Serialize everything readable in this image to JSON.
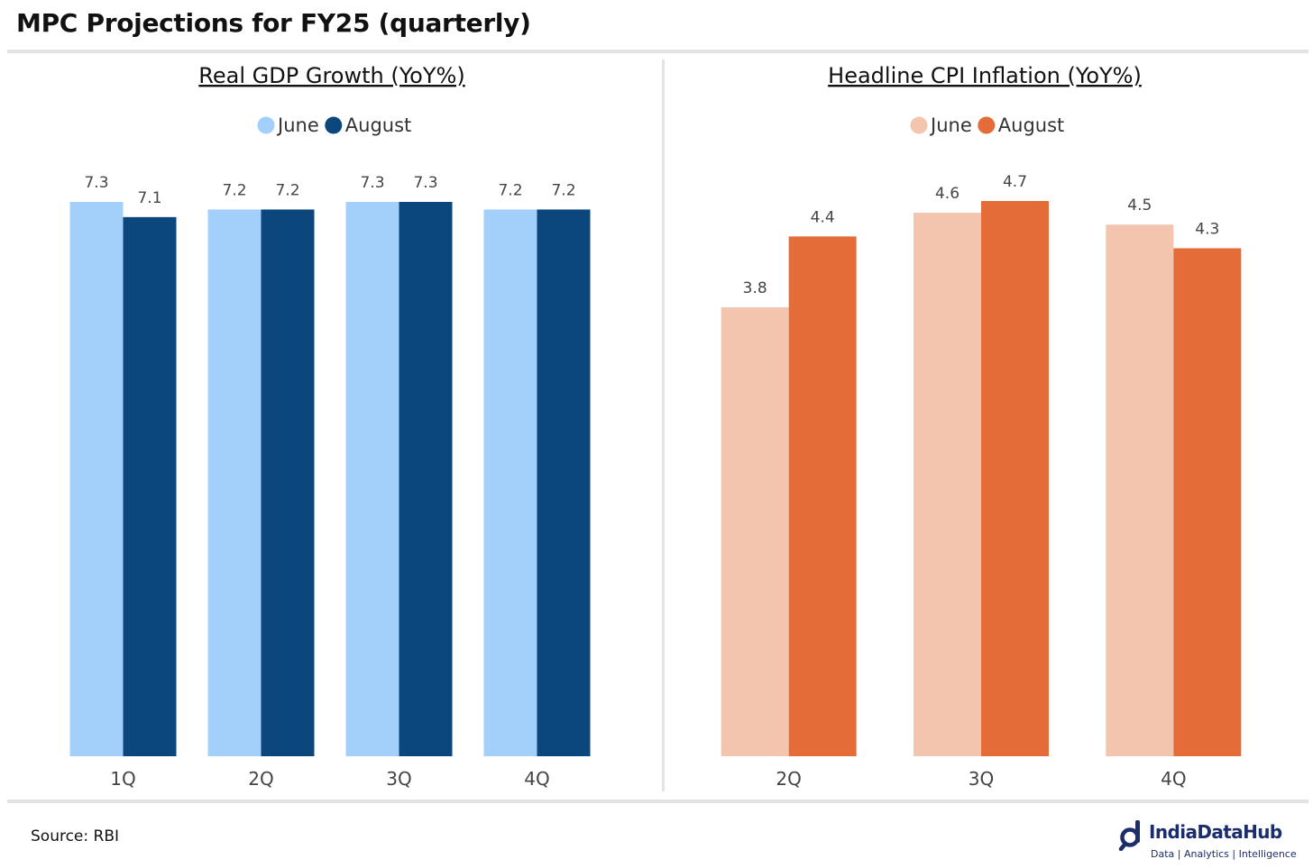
{
  "title": "MPC Projections for FY25 (quarterly)",
  "source": "Source: RBI",
  "brand": {
    "name": "IndiaDataHub",
    "tagline": "Data | Analytics | Intelligence",
    "icon": "magnifier-d-logo-icon",
    "color": "#1b2d6b"
  },
  "chart_data": [
    {
      "type": "bar",
      "title": "Real GDP Growth (YoY%)",
      "categories": [
        "1Q",
        "2Q",
        "3Q",
        "4Q"
      ],
      "series": [
        {
          "name": "June",
          "color": "#a2d0fb",
          "values": [
            7.3,
            7.2,
            7.3,
            7.2
          ]
        },
        {
          "name": "August",
          "color": "#0b477c",
          "values": [
            7.1,
            7.2,
            7.3,
            7.2
          ]
        }
      ],
      "xlabel": "",
      "ylabel": "",
      "ylim": [
        0,
        7.3
      ],
      "legend": "top-center",
      "grid": false,
      "data_labels": true
    },
    {
      "type": "bar",
      "title": "Headline CPI Inflation (YoY%)",
      "categories": [
        "2Q",
        "3Q",
        "4Q"
      ],
      "series": [
        {
          "name": "June",
          "color": "#f3c4ae",
          "values": [
            3.8,
            4.6,
            4.5
          ]
        },
        {
          "name": "August",
          "color": "#e46c39",
          "values": [
            4.4,
            4.7,
            4.3
          ]
        }
      ],
      "xlabel": "",
      "ylabel": "",
      "ylim": [
        0,
        4.7
      ],
      "legend": "top-center",
      "grid": false,
      "data_labels": true
    }
  ]
}
